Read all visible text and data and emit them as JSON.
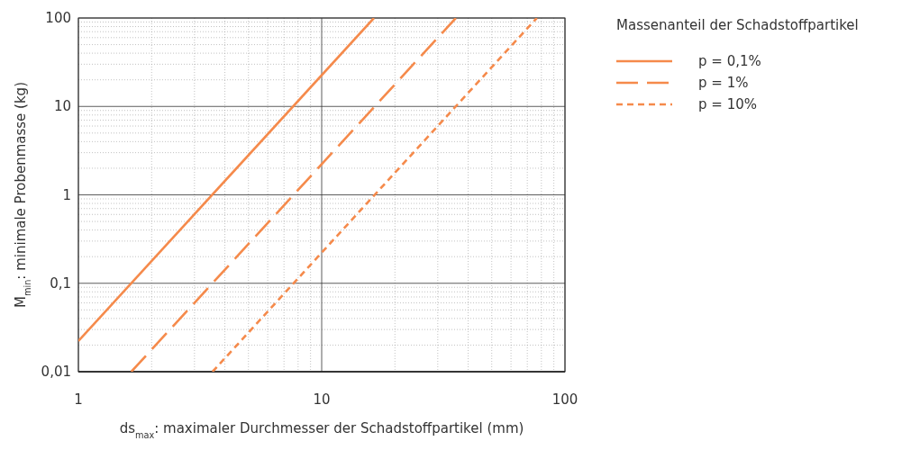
{
  "chart_data": {
    "type": "line",
    "xlabel": "ds$_{max}$: maximaler Durchmesser der Schadstoffpartikel (mm)",
    "ylabel": "M$_{min}$: minimale Probenmasse (kg)",
    "legend_title": "Massenanteil der Schadstoffpartikel",
    "log": "xy",
    "grid": true,
    "legend": "top right",
    "xlim": [
      1,
      100
    ],
    "xticks": [
      1,
      10,
      100
    ],
    "ylim": [
      0.01,
      100
    ],
    "yticks": [
      {
        "value": 0.01,
        "label": "0,01"
      },
      {
        "value": 0.1,
        "label": "0,1"
      },
      1,
      10,
      100
    ],
    "series": [
      {
        "name": "p = 0,1%",
        "color": "#f58a4b",
        "line_style": "solid",
        "x": [
          1,
          16.4
        ],
        "values": [
          0.0222,
          100
        ]
      },
      {
        "name": "p = 1%",
        "color": "#f58a4b",
        "line_style": "dashed",
        "x": [
          1.65,
          35.6
        ],
        "values": [
          0.01,
          100
        ]
      },
      {
        "name": "p = 10%",
        "color": "#f58a4b",
        "line_style": "dotted",
        "x": [
          3.56,
          76.6
        ],
        "values": [
          0.01,
          100
        ]
      }
    ]
  }
}
